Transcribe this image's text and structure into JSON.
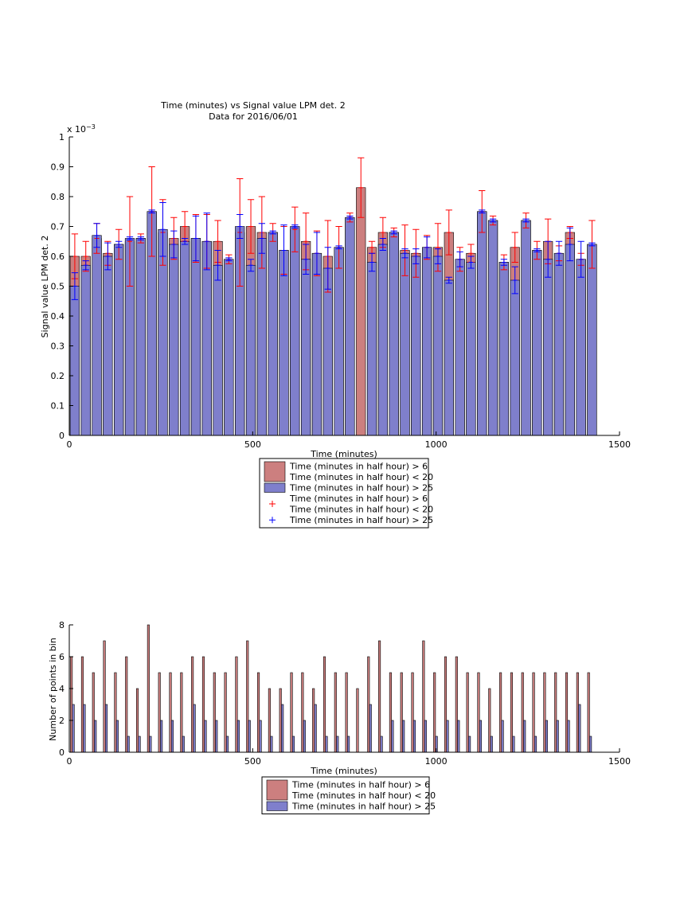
{
  "chart_data": [
    {
      "type": "bar",
      "title": "Time (minutes) vs Signal value LPM det. 2",
      "subtitle": "Data for 2016/06/01",
      "xlabel": "Time (minutes)",
      "ylabel": "Signal value LPM det. 2",
      "y_multiplier_label": "x 10^-3",
      "y_multiplier_base": "x 10",
      "y_multiplier_exp": "−3",
      "xlim": [
        0,
        1500
      ],
      "ylim": [
        0,
        0.001
      ],
      "xticks": [
        0,
        500,
        1000,
        1500
      ],
      "xtick_labels": [
        "0",
        "500",
        "1000",
        "1500"
      ],
      "yticks": [
        0,
        0.0001,
        0.0002,
        0.0003,
        0.0004,
        0.0005,
        0.0006,
        0.0007,
        0.0008,
        0.0009,
        0.001
      ],
      "ytick_labels": [
        "0",
        "0.1",
        "0.2",
        "0.3",
        "0.4",
        "0.5",
        "0.6",
        "0.7",
        "0.8",
        "0.9",
        "1"
      ],
      "grid": false,
      "legend_position": "bottom-center",
      "colors": {
        "series_1": "#cc7f7f",
        "series_2": "#7f7fcc",
        "err_1": "#ff0000",
        "err_2": "#0000ff"
      },
      "x": [
        15,
        45,
        75,
        105,
        135,
        165,
        195,
        225,
        255,
        285,
        315,
        345,
        375,
        405,
        435,
        465,
        495,
        525,
        555,
        585,
        615,
        645,
        675,
        705,
        735,
        765,
        795,
        825,
        855,
        885,
        915,
        945,
        975,
        1005,
        1035,
        1065,
        1095,
        1125,
        1155,
        1185,
        1215,
        1245,
        1275,
        1305,
        1335,
        1365,
        1395,
        1425
      ],
      "series": [
        {
          "name": "Time (minutes in half hour) > 6\nTime (minutes in half hour) < 20",
          "values": [
            0.0006,
            0.0006,
            0.00066,
            0.00061,
            0.00064,
            0.00065,
            0.00066,
            0.00075,
            0.00068,
            0.00066,
            0.0007,
            0.00066,
            0.00065,
            0.00065,
            0.00059,
            0.00068,
            0.0007,
            0.00068,
            0.00068,
            0.00062,
            0.00069,
            0.00065,
            0.00061,
            0.0006,
            0.00063,
            0.00073,
            0.00083,
            0.00063,
            0.00068,
            0.00068,
            0.00062,
            0.00061,
            0.00063,
            0.00063,
            0.00068,
            0.00059,
            0.00061,
            0.00075,
            0.00072,
            0.00058,
            0.00063,
            0.00072,
            0.00062,
            0.00065,
            0.00061,
            0.00068,
            0.00059,
            0.00064
          ],
          "errors": [
            7.5e-05,
            5e-05,
            5e-05,
            4e-05,
            5e-05,
            0.00015,
            1.5e-05,
            0.00015,
            0.00011,
            7e-05,
            5e-05,
            8e-05,
            9e-05,
            7e-05,
            1.5e-05,
            0.00018,
            9e-05,
            0.00012,
            3e-05,
            8e-05,
            7.5e-05,
            9.5e-05,
            7.5e-05,
            0.00012,
            7e-05,
            1.5e-05,
            0.0001,
            2e-05,
            5e-05,
            1.5e-05,
            8.5e-05,
            8e-05,
            4e-05,
            8e-05,
            7.5e-05,
            4e-05,
            3e-05,
            7e-05,
            1.5e-05,
            2.5e-05,
            5e-05,
            2.5e-05,
            3e-05,
            7.5e-05,
            2.5e-05,
            2e-05,
            2e-05,
            8e-05
          ]
        },
        {
          "name": "Time (minutes in half hour) > 25",
          "values": [
            0.0005,
            0.00057,
            0.00067,
            0.0006,
            0.00064,
            0.00066,
            0.00066,
            0.00075,
            0.00069,
            0.00064,
            0.00065,
            0.00066,
            0.00065,
            0.00057,
            0.00059,
            0.0007,
            0.00057,
            0.00066,
            0.00068,
            0.00062,
            0.0007,
            0.00059,
            0.00061,
            0.00056,
            0.00063,
            0.00073,
            0.0,
            0.00058,
            0.00064,
            0.00068,
            0.00061,
            0.0006,
            0.00063,
            0.0006,
            0.00052,
            0.00059,
            0.00058,
            0.00075,
            0.00072,
            0.00058,
            0.00052,
            0.00072,
            0.00062,
            0.00059,
            0.00061,
            0.00064,
            0.00059,
            0.00064
          ],
          "errors": [
            4.5e-05,
            1.5e-05,
            4e-05,
            4.5e-05,
            1e-05,
            5e-06,
            5e-06,
            5e-06,
            9e-05,
            4.5e-05,
            1e-05,
            7.5e-05,
            9.5e-05,
            5e-05,
            5e-06,
            4e-05,
            2e-05,
            5e-05,
            5e-06,
            8.5e-05,
            5e-06,
            5e-05,
            7e-05,
            7e-05,
            5e-06,
            5e-06,
            0.0,
            3e-05,
            2e-05,
            5e-06,
            1.5e-05,
            2.5e-05,
            3.5e-05,
            2.5e-05,
            1e-05,
            2.5e-05,
            2e-05,
            5e-06,
            5e-06,
            1e-05,
            4.5e-05,
            5e-06,
            5e-06,
            6e-05,
            4e-05,
            5.5e-05,
            6e-05,
            5e-06
          ]
        }
      ],
      "legend_entries": [
        {
          "swatch": "bar",
          "color": "#cc7f7f",
          "lines": [
            "Time (minutes in half hour) > 6",
            "Time (minutes in half hour) < 20"
          ]
        },
        {
          "swatch": "bar",
          "color": "#7f7fcc",
          "lines": [
            "Time (minutes in half hour) > 25"
          ]
        },
        {
          "swatch": "plus",
          "color": "#ff0000",
          "lines": [
            "Time (minutes in half hour) > 6",
            "Time (minutes in half hour) < 20"
          ]
        },
        {
          "swatch": "plus",
          "color": "#0000ff",
          "lines": [
            "Time (minutes in half hour) > 25"
          ]
        }
      ]
    },
    {
      "type": "bar",
      "xlabel": "Time (minutes)",
      "ylabel": "Number of points in bin",
      "xlim": [
        0,
        1500
      ],
      "ylim": [
        0,
        8
      ],
      "xticks": [
        0,
        500,
        1000,
        1500
      ],
      "xtick_labels": [
        "0",
        "500",
        "1000",
        "1500"
      ],
      "yticks": [
        0,
        2,
        4,
        6,
        8
      ],
      "ytick_labels": [
        "0",
        "2",
        "4",
        "6",
        "8"
      ],
      "grid": false,
      "legend_position": "bottom-center",
      "colors": {
        "series_1": "#cc7f7f",
        "series_2": "#7f7fcc"
      },
      "x": [
        15,
        45,
        75,
        105,
        135,
        165,
        195,
        225,
        255,
        285,
        315,
        345,
        375,
        405,
        435,
        465,
        495,
        525,
        555,
        585,
        615,
        645,
        675,
        705,
        735,
        765,
        795,
        825,
        855,
        885,
        915,
        945,
        975,
        1005,
        1035,
        1065,
        1095,
        1125,
        1155,
        1185,
        1215,
        1245,
        1275,
        1305,
        1335,
        1365,
        1395,
        1425
      ],
      "series": [
        {
          "name": "Time (minutes in half hour) > 6\nTime (minutes in half hour) < 20",
          "values": [
            6,
            6,
            5,
            7,
            5,
            6,
            4,
            8,
            5,
            5,
            5,
            6,
            6,
            5,
            5,
            6,
            7,
            5,
            4,
            4,
            5,
            5,
            4,
            6,
            5,
            5,
            4,
            6,
            7,
            5,
            5,
            5,
            7,
            5,
            6,
            6,
            5,
            5,
            4,
            5,
            5,
            5,
            5,
            5,
            5,
            5,
            5,
            5
          ]
        },
        {
          "name": "Time (minutes in half hour) > 25",
          "values": [
            3,
            3,
            2,
            3,
            2,
            1,
            1,
            1,
            2,
            2,
            1,
            3,
            2,
            2,
            1,
            2,
            2,
            2,
            1,
            3,
            1,
            2,
            3,
            1,
            1,
            1,
            0,
            3,
            1,
            2,
            2,
            2,
            2,
            1,
            2,
            2,
            1,
            2,
            1,
            2,
            1,
            2,
            1,
            2,
            2,
            2,
            3,
            1
          ]
        }
      ],
      "legend_entries": [
        {
          "swatch": "bar",
          "color": "#cc7f7f",
          "lines": [
            "Time (minutes in half hour) > 6",
            "Time (minutes in half hour) < 20"
          ]
        },
        {
          "swatch": "bar",
          "color": "#7f7fcc",
          "lines": [
            "Time (minutes in half hour) > 25"
          ]
        }
      ]
    }
  ]
}
